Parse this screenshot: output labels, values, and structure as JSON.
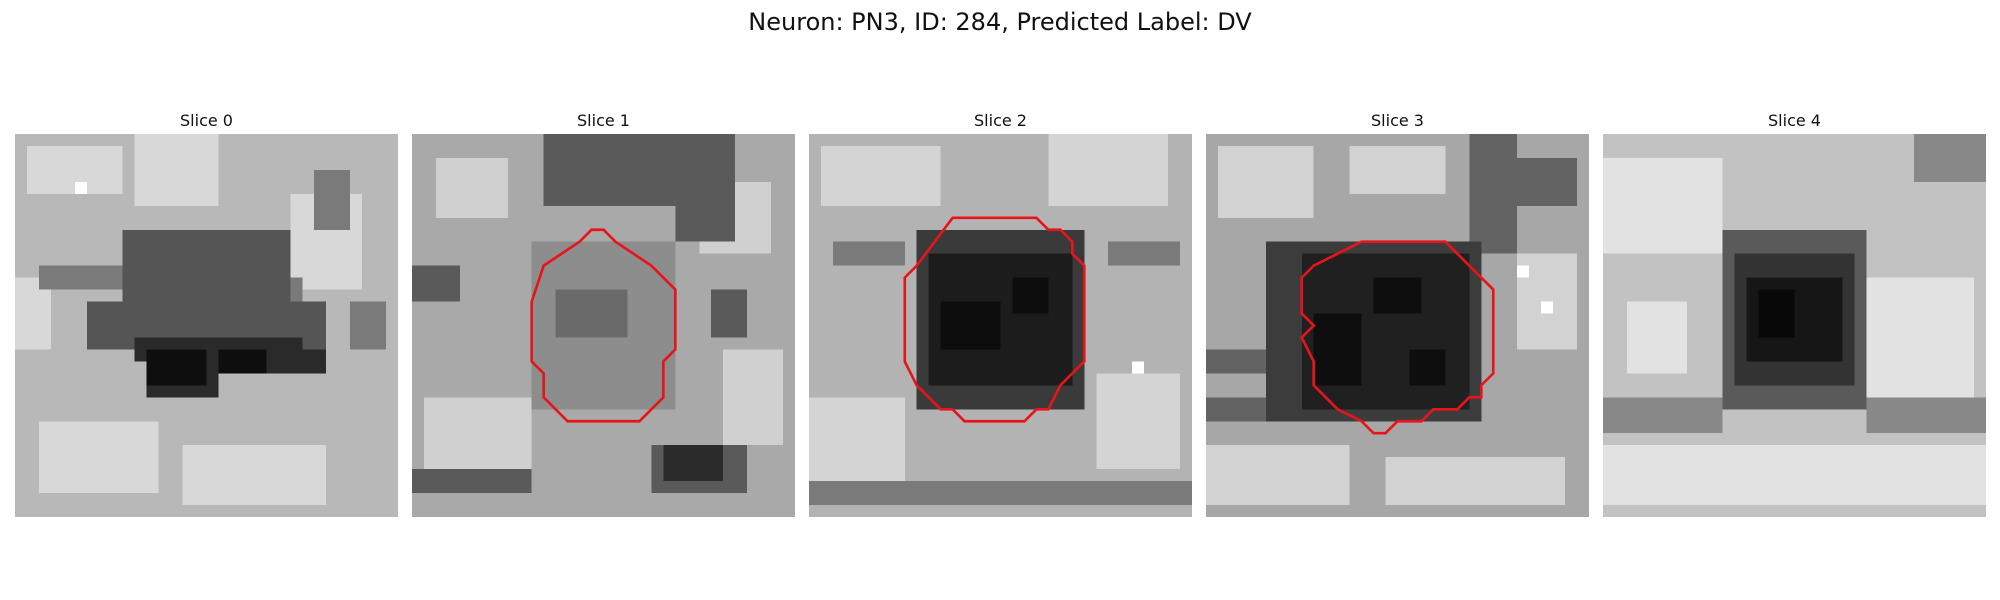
{
  "figure": {
    "title": "Neuron: PN3, ID: 284, Predicted Label: DV"
  },
  "slices": [
    {
      "title": "Slice 0",
      "has_contour": false
    },
    {
      "title": "Slice 1",
      "has_contour": true
    },
    {
      "title": "Slice 2",
      "has_contour": true
    },
    {
      "title": "Slice 3",
      "has_contour": true
    },
    {
      "title": "Slice 4",
      "has_contour": false
    }
  ],
  "colors": {
    "contour": "#e8141b",
    "background": "#ffffff"
  }
}
